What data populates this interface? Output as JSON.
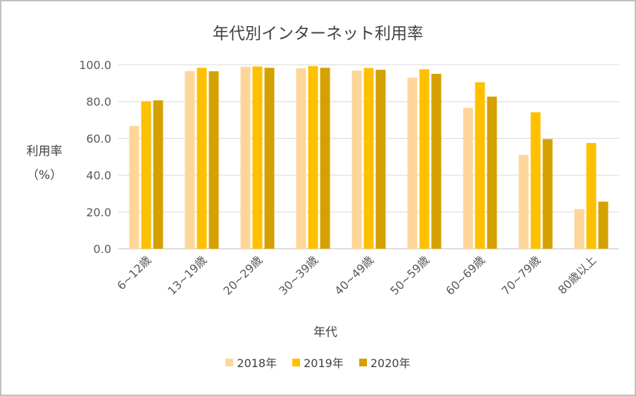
{
  "chart_data": {
    "type": "bar",
    "title": "年代別インターネット利用率",
    "xlabel": "年代",
    "ylabel_line1": "利用率",
    "ylabel_line2": "（%）",
    "ylim": [
      0,
      100
    ],
    "yticks": [
      "100.0",
      "80.0",
      "60.0",
      "40.0",
      "20.0",
      "0.0"
    ],
    "ytick_values": [
      100,
      80,
      60,
      40,
      20,
      0
    ],
    "grid": true,
    "legend_position": "bottom",
    "categories": [
      "6~12歳",
      "13~19歳",
      "20~29歳",
      "30~39歳",
      "40~49歳",
      "50~59歳",
      "60~69歳",
      "70~79歳",
      "80歳以上"
    ],
    "series": [
      {
        "name": "2018年",
        "color": "#ffd699",
        "values": [
          66.8,
          96.6,
          98.9,
          98.1,
          96.9,
          93.0,
          76.6,
          51.0,
          21.5
        ]
      },
      {
        "name": "2019年",
        "color": "#ffc000",
        "values": [
          80.2,
          98.4,
          99.1,
          99.3,
          98.3,
          97.6,
          90.5,
          74.2,
          57.5
        ]
      },
      {
        "name": "2020年",
        "color": "#d4a100",
        "values": [
          80.7,
          96.5,
          98.4,
          98.4,
          97.3,
          95.1,
          82.7,
          59.6,
          25.6
        ]
      }
    ]
  }
}
